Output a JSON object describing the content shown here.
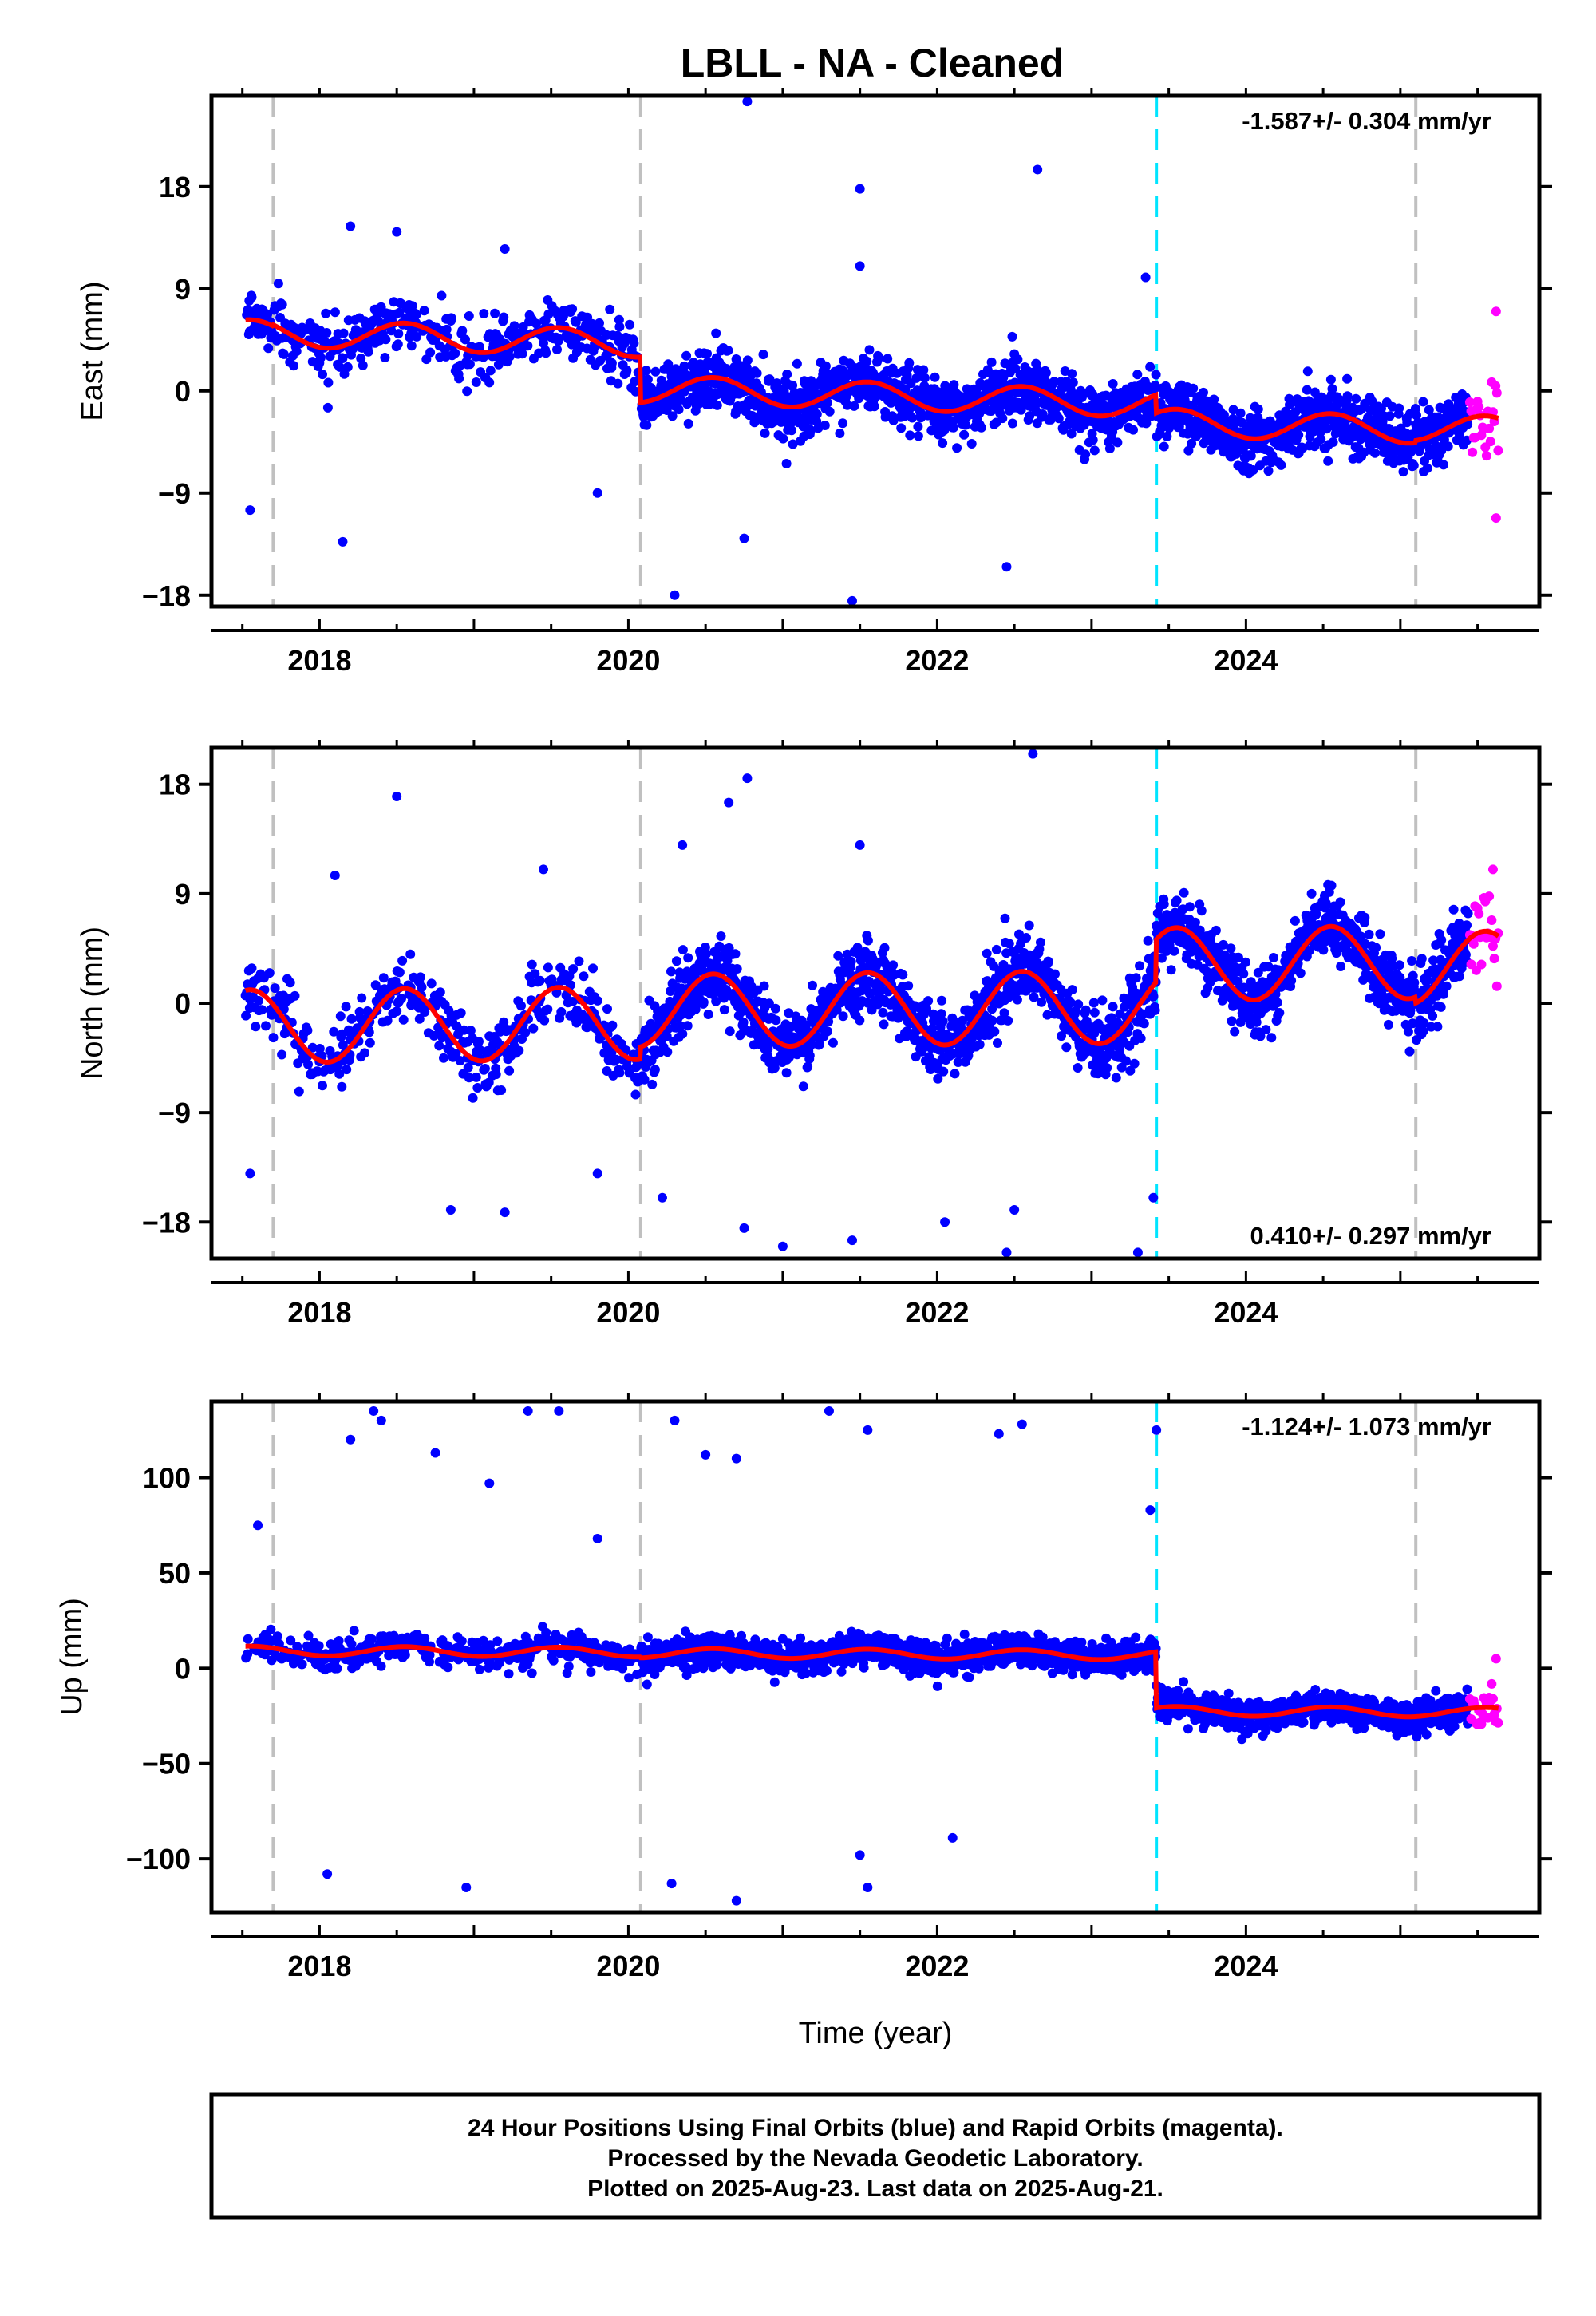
{
  "title": "LBLL  - NA - Cleaned",
  "colors": {
    "final_points": "#0000ff",
    "rapid_points": "#ff00ff",
    "model_line": "#ff0000",
    "equipment_change": "#c0c0c0",
    "earthquake_event": "#00e5ff"
  },
  "footer": {
    "lines": [
      "24 Hour Positions Using Final Orbits (blue) and Rapid Orbits (magenta).",
      "Processed by the Nevada Geodetic Laboratory.",
      "Plotted on 2025-Aug-23. Last data on 2025-Aug-21."
    ]
  },
  "chart_data": [
    {
      "type": "scatter",
      "ylabel": "East (mm)",
      "xlabel": "",
      "rate_text": "-1.587+/- 0.304 mm/yr",
      "rate_position": "top-right",
      "xlim": [
        2017.3,
        2025.9
      ],
      "ylim": [
        -19,
        26
      ],
      "yticks": [
        -18,
        -9,
        0,
        9,
        18
      ],
      "xticks": [
        2018,
        2020,
        2022,
        2024
      ],
      "equipment_changes": [
        2017.7,
        2020.08,
        2025.1
      ],
      "event_lines": [
        2023.42
      ],
      "offsets": [
        [
          2017.7,
          3.0
        ],
        [
          2020.08,
          0.0
        ],
        [
          2023.42,
          4.5
        ],
        [
          2025.1,
          1.2
        ]
      ],
      "trend_rate": -1.587,
      "seasonal_amplitude": 1.2,
      "segment_levels": [
        3.5,
        3.6,
        -0.4,
        -2.0,
        -1.8
      ],
      "scatter_sigma": 1.3,
      "outliers": [
        [
          2020.77,
          25.5
        ],
        [
          2022.65,
          19.5
        ],
        [
          2021.5,
          17.8
        ],
        [
          2017.55,
          -10.5
        ],
        [
          2018.15,
          -13.3
        ],
        [
          2020.3,
          -18.0
        ],
        [
          2021.45,
          -18.5
        ],
        [
          2022.45,
          -15.5
        ],
        [
          2020.75,
          -13.0
        ],
        [
          2019.8,
          -9.0
        ],
        [
          2018.2,
          14.5
        ],
        [
          2018.5,
          14.0
        ],
        [
          2019.2,
          12.5
        ],
        [
          2021.5,
          11.0
        ],
        [
          2023.35,
          10.0
        ]
      ],
      "rapid": {
        "x_range": [
          2025.45,
          2025.64
        ],
        "spread": 4.0,
        "outliers": [
          [
            2025.62,
            7.0
          ],
          [
            2025.62,
            -11.2
          ]
        ]
      }
    },
    {
      "type": "scatter",
      "ylabel": "North (mm)",
      "xlabel": "",
      "rate_text": "0.410+/- 0.297 mm/yr",
      "rate_position": "bottom-right",
      "xlim": [
        2017.3,
        2025.9
      ],
      "ylim": [
        -21,
        21
      ],
      "yticks": [
        -18,
        -9,
        0,
        9,
        18
      ],
      "xticks": [
        2018,
        2020,
        2022,
        2024
      ],
      "equipment_changes": [
        2017.7,
        2020.08,
        2025.1
      ],
      "event_lines": [
        2023.42
      ],
      "offsets": [
        [
          2023.42,
          6.5
        ]
      ],
      "trend_rate": 0.41,
      "seasonal_amplitude": 3.0,
      "segment_levels": [
        -1.5,
        -1.5,
        -0.5,
        3.0,
        2.5
      ],
      "scatter_sigma": 1.4,
      "outliers": [
        [
          2022.62,
          20.5
        ],
        [
          2020.77,
          18.5
        ],
        [
          2018.5,
          17.0
        ],
        [
          2020.65,
          16.5
        ],
        [
          2020.35,
          13.0
        ],
        [
          2021.5,
          13.0
        ],
        [
          2019.45,
          11.0
        ],
        [
          2018.1,
          10.5
        ],
        [
          2017.55,
          -14.0
        ],
        [
          2018.85,
          -17.0
        ],
        [
          2019.2,
          -17.2
        ],
        [
          2020.22,
          -16.0
        ],
        [
          2020.75,
          -18.5
        ],
        [
          2021.0,
          -20.0
        ],
        [
          2021.45,
          -19.5
        ],
        [
          2022.45,
          -20.5
        ],
        [
          2022.05,
          -18.0
        ],
        [
          2022.5,
          -17.0
        ],
        [
          2023.3,
          -20.5
        ],
        [
          2023.4,
          -16.0
        ],
        [
          2019.8,
          -14.0
        ]
      ],
      "rapid": {
        "x_range": [
          2025.45,
          2025.64
        ],
        "spread": 3.0,
        "outliers": [
          [
            2025.6,
            11.0
          ]
        ]
      }
    },
    {
      "type": "scatter",
      "ylabel": "Up (mm)",
      "xlabel": "Time (year)",
      "rate_text": "-1.124+/- 1.073 mm/yr",
      "rate_position": "top-right",
      "xlim": [
        2017.3,
        2025.9
      ],
      "ylim": [
        -128,
        140
      ],
      "yticks": [
        -100,
        -50,
        0,
        50,
        100
      ],
      "xticks": [
        2018,
        2020,
        2022,
        2024
      ],
      "equipment_changes": [
        2017.7,
        2020.08,
        2025.1
      ],
      "event_lines": [
        2023.42
      ],
      "offsets": [
        [
          2023.42,
          -30.0
        ]
      ],
      "trend_rate": -1.124,
      "seasonal_amplitude": 2.5,
      "segment_levels": [
        8.0,
        8.0,
        7.5,
        -22.0,
        -22.0
      ],
      "scatter_sigma": 4.0,
      "outliers": [
        [
          2018.35,
          135.0
        ],
        [
          2018.4,
          130.0
        ],
        [
          2019.35,
          135.0
        ],
        [
          2019.55,
          135.0
        ],
        [
          2021.3,
          135.0
        ],
        [
          2018.75,
          113.0
        ],
        [
          2019.1,
          97.0
        ],
        [
          2020.3,
          130.0
        ],
        [
          2020.5,
          112.0
        ],
        [
          2020.7,
          110.0
        ],
        [
          2021.55,
          125.0
        ],
        [
          2022.4,
          123.0
        ],
        [
          2022.55,
          128.0
        ],
        [
          2023.42,
          125.0
        ],
        [
          2023.38,
          83.0
        ],
        [
          2018.05,
          -108.0
        ],
        [
          2018.95,
          -115.0
        ],
        [
          2020.28,
          -113.0
        ],
        [
          2020.7,
          -122.0
        ],
        [
          2021.55,
          -115.0
        ],
        [
          2021.5,
          -98.0
        ],
        [
          2022.1,
          -89.0
        ],
        [
          2018.2,
          120.0
        ],
        [
          2019.8,
          68.0
        ],
        [
          2017.6,
          75.0
        ]
      ],
      "rapid": {
        "x_range": [
          2025.45,
          2025.64
        ],
        "spread": 10.0,
        "outliers": [
          [
            2025.62,
            5.0
          ],
          [
            2025.6,
            -26.0
          ]
        ]
      }
    }
  ]
}
